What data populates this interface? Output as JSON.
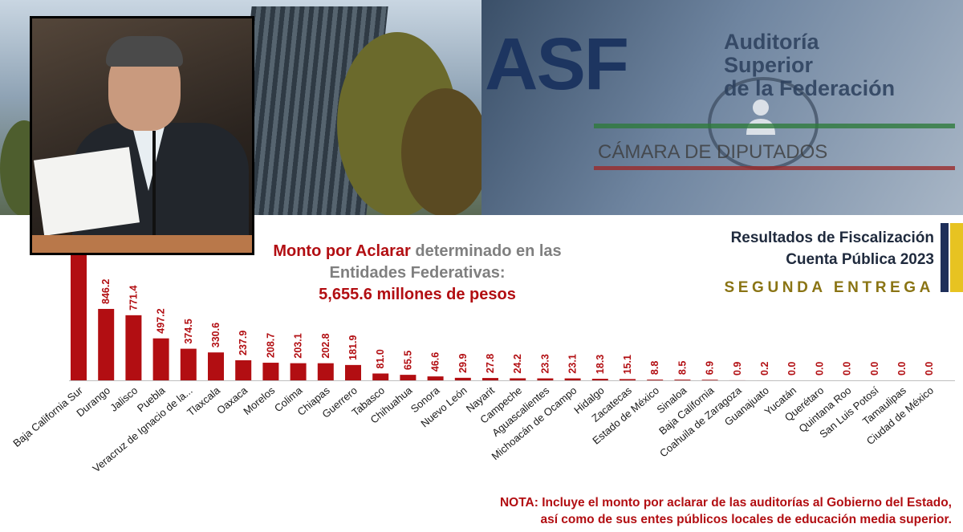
{
  "header": {
    "asf_logo": "ASF",
    "asf_name": [
      "Auditoría",
      "Superior",
      "de la Federación"
    ],
    "asf_sub": "CÁMARA DE DIPUTADOS"
  },
  "title": {
    "line1_accent": "Monto por Aclarar",
    "line1_rest": " determinado en las",
    "line2": "Entidades Federativas:",
    "line3": "5,655.6 millones de pesos"
  },
  "report": {
    "line1": "Resultados de Fiscalización",
    "line2": "Cuenta Pública 2023",
    "line3": "SEGUNDA ENTREGA"
  },
  "note": {
    "line1": "NOTA: Incluye el monto por aclarar de las auditorías al Gobierno del Estado,",
    "line2": "así como de sus entes públicos locales de educación media superior."
  },
  "colors": {
    "bar": "#b20e12",
    "label": "#b20e12",
    "title_gray": "#7f7f7f",
    "report_gold": "#8a7414"
  },
  "chart_data": {
    "type": "bar",
    "title": "Monto por Aclarar determinado en las Entidades Federativas: 5,655.6 millones de pesos",
    "categories": [
      "Baja California Sur",
      "Durango",
      "Jalisco",
      "Puebla",
      "Veracruz de Ignacio de la...",
      "Tlaxcala",
      "Oaxaca",
      "Morelos",
      "Colima",
      "Chiapas",
      "Guerrero",
      "Tabasco",
      "Chihuahua",
      "Sonora",
      "Nuevo León",
      "Nayarit",
      "Campeche",
      "Aguascalientes",
      "Michoacán de Ocampo",
      "Hidalgo",
      "Zacatecas",
      "Estado de México",
      "Sinaloa",
      "Baja California",
      "Coahuila de Zaragoza",
      "Guanajuato",
      "Yucatán",
      "Querétaro",
      "Quintana Roo",
      "San Luis Potosí",
      "Tamaulipas",
      "Ciudad de México"
    ],
    "values": [
      null,
      846.2,
      771.4,
      497.2,
      374.5,
      330.6,
      237.9,
      208.7,
      203.1,
      202.8,
      181.9,
      81.0,
      65.5,
      46.6,
      29.9,
      27.8,
      24.2,
      23.3,
      23.1,
      18.3,
      15.1,
      8.8,
      8.5,
      6.9,
      0.9,
      0.2,
      0.0,
      0.0,
      0.0,
      0.0,
      0.0,
      0.0
    ],
    "data_labels": [
      "",
      "846.2",
      "771.4",
      "497.2",
      "374.5",
      "330.6",
      "237.9",
      "208.7",
      "203.1",
      "202.8",
      "181.9",
      "81.0",
      "65.5",
      "46.6",
      "29.9",
      "27.8",
      "24.2",
      "23.3",
      "23.1",
      "18.3",
      "15.1",
      "8.8",
      "8.5",
      "6.9",
      "0.9",
      "0.2",
      "0.0",
      "0.0",
      "0.0",
      "0.0",
      "0.0",
      "0.0"
    ],
    "first_bar_truncated": true,
    "ylim": [
      0,
      1500
    ],
    "xlabel": "",
    "ylabel": "",
    "grid": false,
    "legend": "none"
  }
}
